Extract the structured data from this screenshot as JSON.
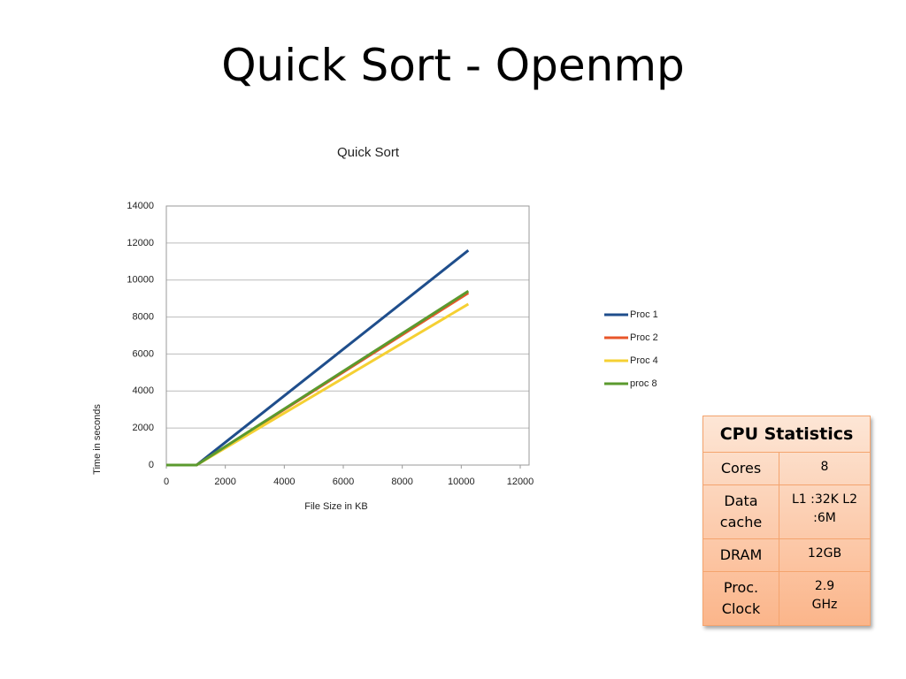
{
  "slide_title": "Quick Sort - Openmp",
  "chart_data": {
    "type": "line",
    "title": "Quick Sort",
    "x_label": "File Size in KB",
    "y_label": "Time in seconds",
    "x": [
      0,
      1024,
      10240
    ],
    "series": [
      {
        "name": "Proc 1",
        "color": "#1f4e8c",
        "values": [
          0,
          0,
          11600
        ]
      },
      {
        "name": "Proc 2",
        "color": "#e8562a",
        "values": [
          0,
          0,
          9300
        ]
      },
      {
        "name": "Proc 4",
        "color": "#f5d033",
        "values": [
          0,
          0,
          8700
        ]
      },
      {
        "name": "proc 8",
        "color": "#5b9a2e",
        "values": [
          0,
          0,
          9400
        ]
      }
    ],
    "xlim": [
      0,
      12300
    ],
    "xticks": [
      0,
      2000,
      4000,
      6000,
      8000,
      10000,
      12000
    ],
    "ylim": [
      0,
      14000
    ],
    "yticks": [
      0,
      2000,
      4000,
      6000,
      8000,
      10000,
      12000,
      14000
    ],
    "grid": true,
    "legend": "right"
  },
  "table": {
    "header": "CPU Statistics",
    "rows": [
      [
        "Cores",
        "8"
      ],
      [
        "Data cache",
        "L1 :32K L2 :6M"
      ],
      [
        "DRAM",
        "12GB"
      ],
      [
        "Proc. Clock",
        "2.9 GHz"
      ]
    ]
  }
}
